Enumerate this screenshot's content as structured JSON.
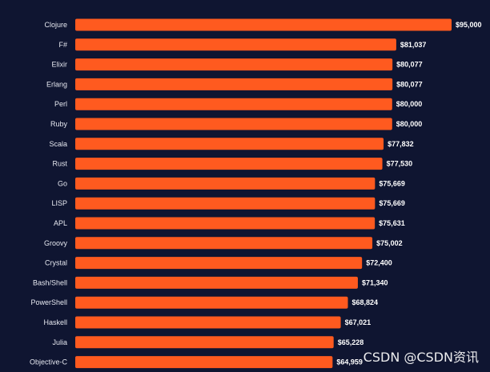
{
  "chart_data": {
    "type": "bar",
    "orientation": "horizontal",
    "categories": [
      "Clojure",
      "F#",
      "Elixir",
      "Erlang",
      "Perl",
      "Ruby",
      "Scala",
      "Rust",
      "Go",
      "LISP",
      "APL",
      "Groovy",
      "Crystal",
      "Bash/Shell",
      "PowerShell",
      "Haskell",
      "Julia",
      "Objective-C"
    ],
    "values": [
      95000,
      81037,
      80077,
      80077,
      80000,
      80000,
      77832,
      77530,
      75669,
      75669,
      75631,
      75002,
      72400,
      71340,
      68824,
      67021,
      65228,
      64959
    ],
    "value_labels": [
      "$95,000",
      "$81,037",
      "$80,077",
      "$80,077",
      "$80,000",
      "$80,000",
      "$77,832",
      "$77,530",
      "$75,669",
      "$75,669",
      "$75,631",
      "$75,002",
      "$72,400",
      "$71,340",
      "$68,824",
      "$67,021",
      "$65,228",
      "$64,959"
    ],
    "title": "",
    "xlabel": "",
    "ylabel": "",
    "xlim": [
      0,
      95000
    ],
    "grid": false,
    "bar_color": "#ff5a1f",
    "background": "#0f1531"
  },
  "watermark": "CSDN @CSDN资讯"
}
